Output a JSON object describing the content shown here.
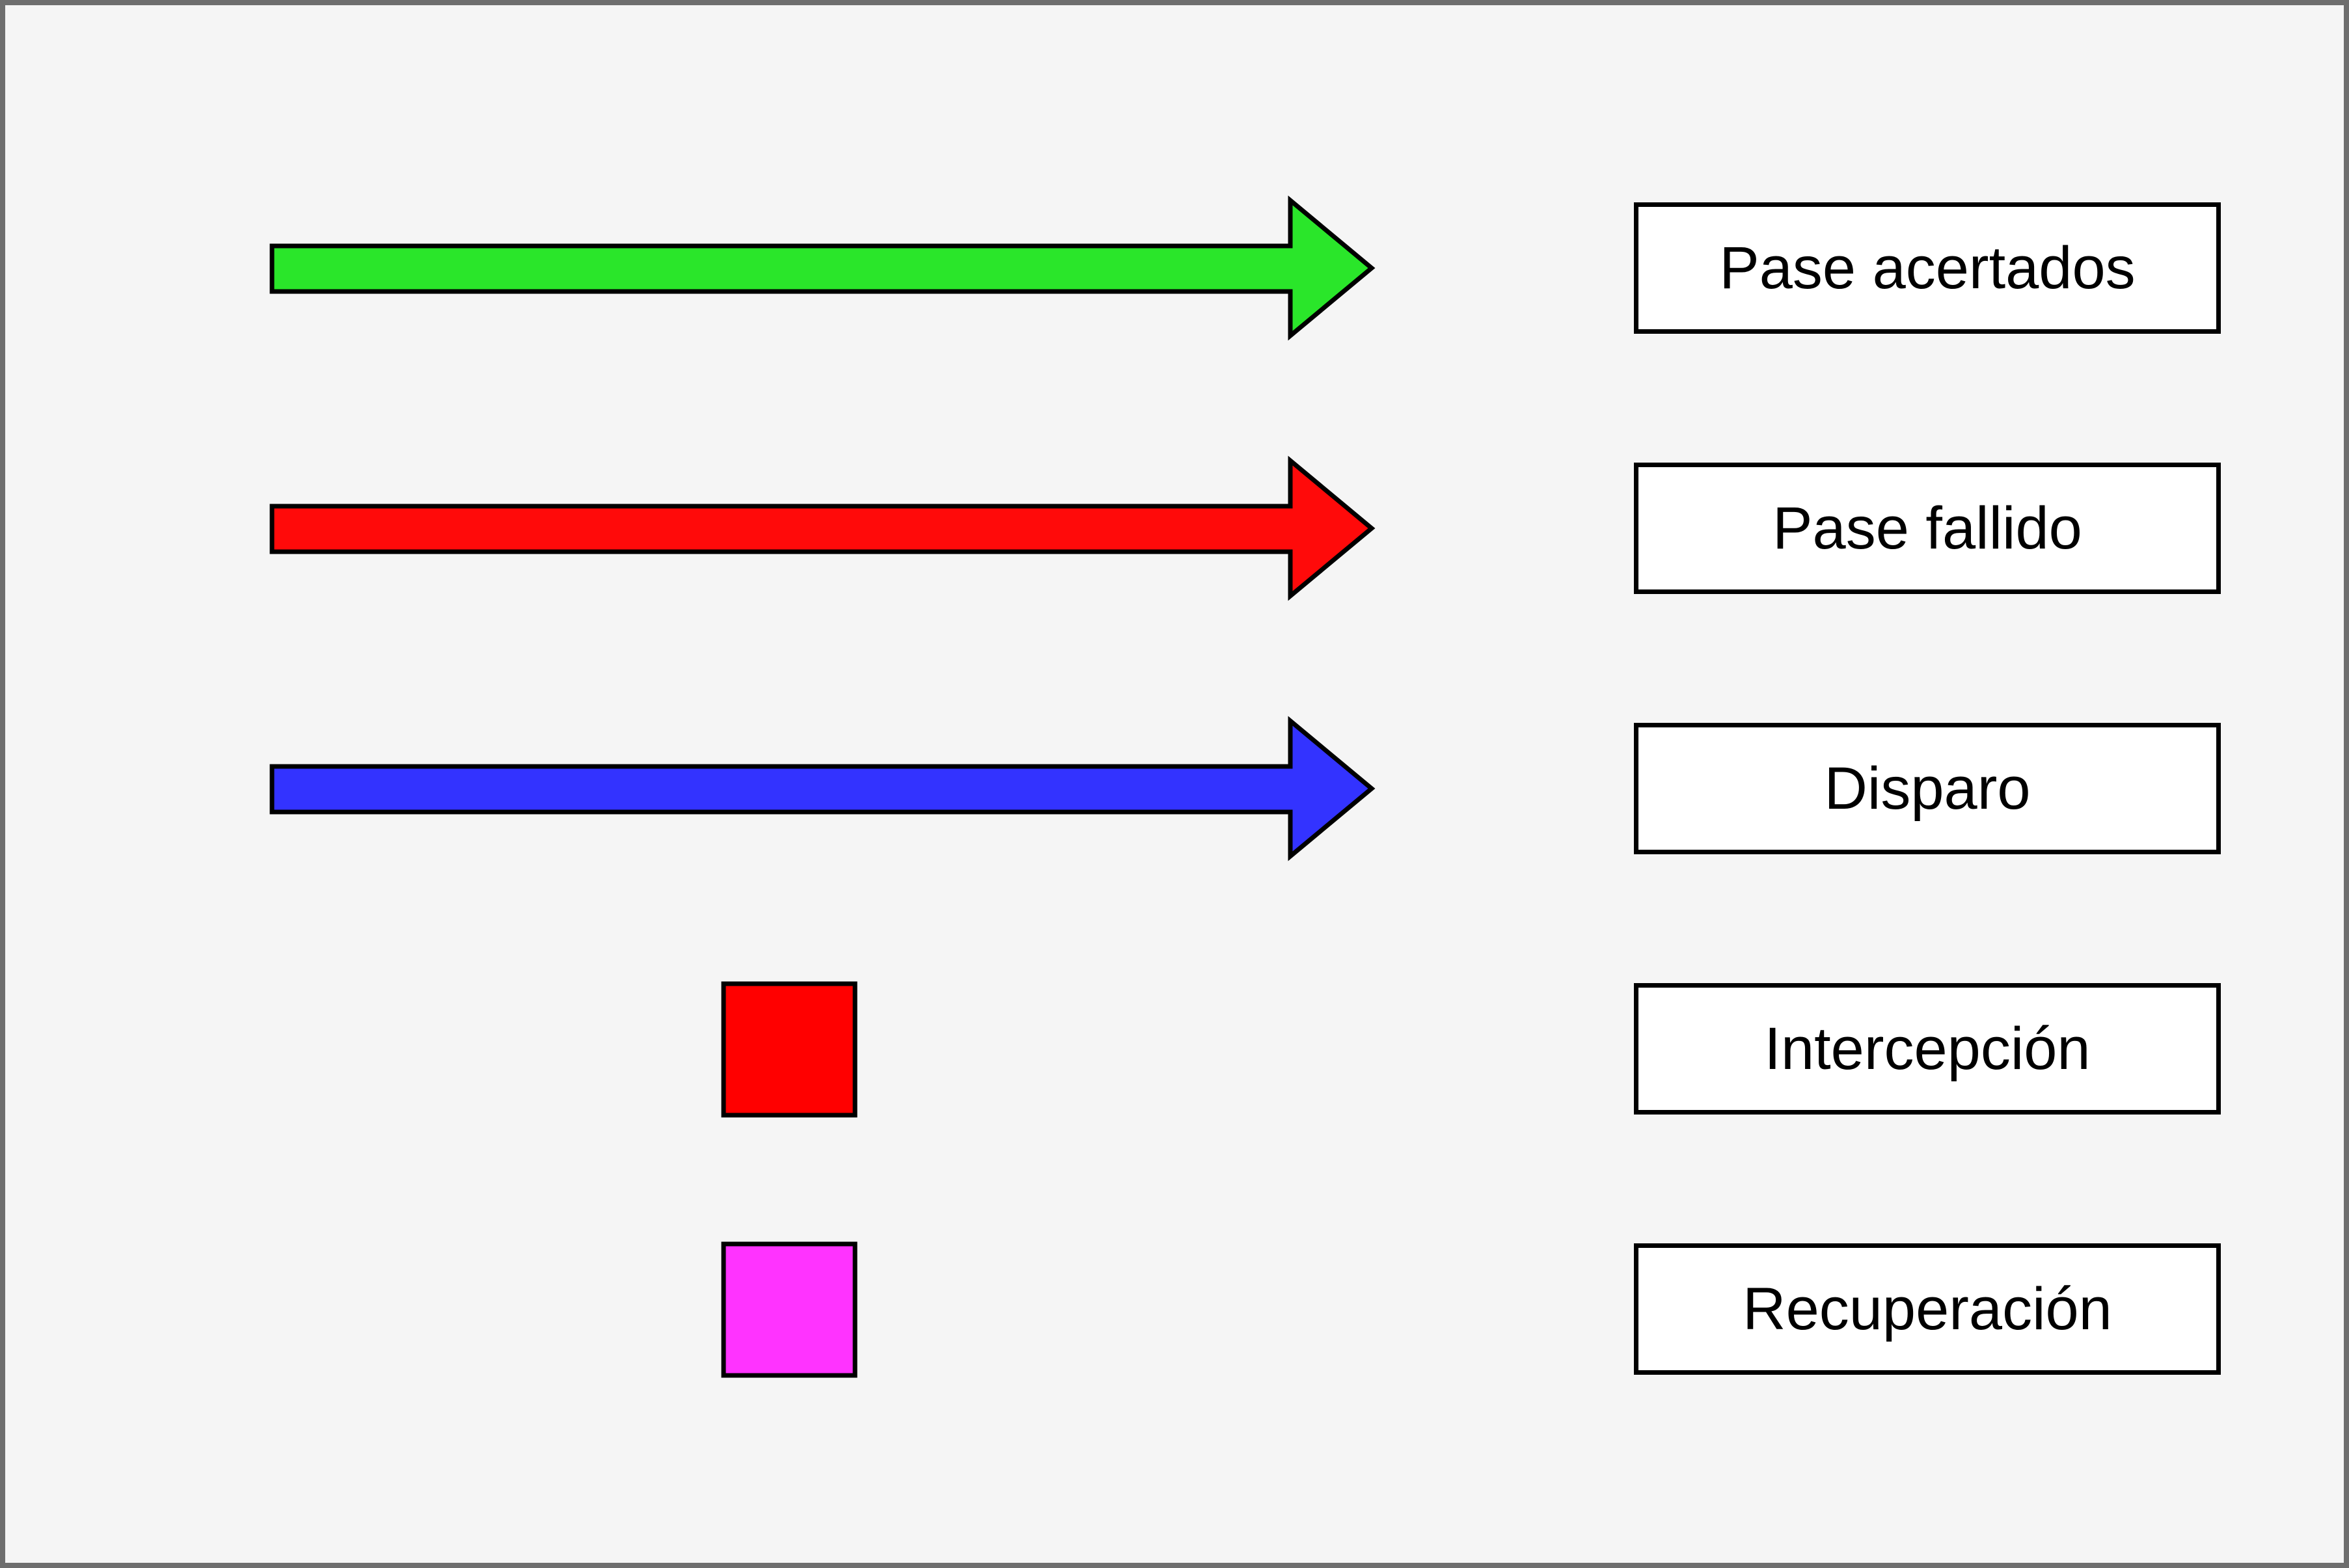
{
  "legend": {
    "items": [
      {
        "shape": "arrow",
        "color": "#2ae62a",
        "label": "Pase acertados"
      },
      {
        "shape": "arrow",
        "color": "#ff0a0a",
        "label": "Pase fallido"
      },
      {
        "shape": "arrow",
        "color": "#3333ff",
        "label": "Disparo"
      },
      {
        "shape": "square",
        "color": "#ff0000",
        "label": "Intercepción"
      },
      {
        "shape": "square",
        "color": "#ff33ff",
        "label": "Recuperación"
      }
    ]
  }
}
